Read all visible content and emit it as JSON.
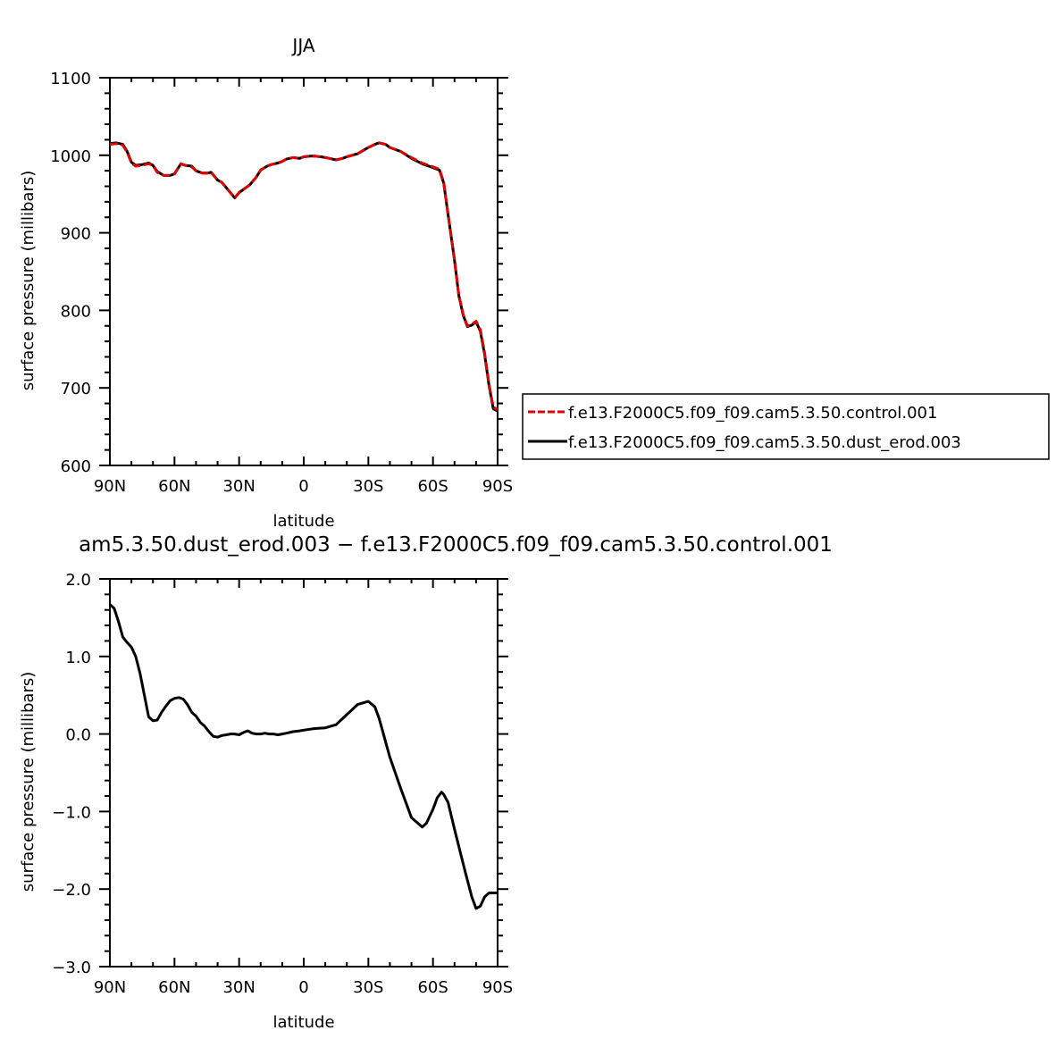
{
  "chart_data": [
    {
      "type": "line",
      "title": "JJA",
      "xlabel": "latitude",
      "ylabel": "surface pressure (millibars)",
      "xlim": [
        90,
        -90
      ],
      "ylim": [
        600,
        1100
      ],
      "x_ticks": [
        {
          "value": 90,
          "label": "90N"
        },
        {
          "value": 60,
          "label": "60N"
        },
        {
          "value": 30,
          "label": "30N"
        },
        {
          "value": 0,
          "label": "0"
        },
        {
          "value": -30,
          "label": "30S"
        },
        {
          "value": -60,
          "label": "60S"
        },
        {
          "value": -90,
          "label": "90S"
        }
      ],
      "y_ticks": [
        {
          "value": 1100,
          "label": "1100"
        },
        {
          "value": 1000,
          "label": "1000"
        },
        {
          "value": 900,
          "label": "900"
        },
        {
          "value": 800,
          "label": "800"
        },
        {
          "value": 700,
          "label": "700"
        },
        {
          "value": 600,
          "label": "600"
        }
      ],
      "legend": {
        "placement": "right",
        "entries": [
          {
            "name": "f.e13.F2000C5.f09_f09.cam5.3.50.control.001",
            "color": "#e00000",
            "dash": "dashed"
          },
          {
            "name": "f.e13.F2000C5.f09_f09.cam5.3.50.dust_erod.003",
            "color": "#000000",
            "dash": "solid"
          }
        ]
      },
      "x": [
        90,
        87,
        84,
        82,
        80,
        78,
        75,
        72,
        70,
        68,
        65,
        62,
        60,
        57,
        55,
        52,
        50,
        47,
        45,
        43,
        40,
        38,
        35,
        32,
        30,
        27,
        25,
        22,
        20,
        17,
        15,
        12,
        10,
        8,
        5,
        2,
        0,
        -3,
        -5,
        -8,
        -10,
        -12,
        -15,
        -18,
        -20,
        -25,
        -30,
        -33,
        -35,
        -38,
        -40,
        -45,
        -50,
        -55,
        -60,
        -63,
        -65,
        -67,
        -70,
        -72,
        -74,
        -76,
        -78,
        -80,
        -82,
        -84,
        -86,
        -88,
        -90
      ],
      "series": [
        {
          "name": "f.e13.F2000C5.f09_f09.cam5.3.50.control.001",
          "color": "#e00000",
          "dash": "dashed",
          "values": [
            1014,
            1015,
            1013,
            1004,
            990,
            986,
            987,
            989,
            987,
            978,
            974,
            974,
            976,
            989,
            987,
            985,
            980,
            977,
            977,
            978,
            968,
            965,
            955,
            945,
            952,
            958,
            962,
            972,
            981,
            986,
            988,
            990,
            992,
            995,
            997,
            996,
            998,
            999,
            999,
            998,
            997,
            996,
            994,
            996,
            998,
            1002,
            1010,
            1014,
            1016,
            1014,
            1010,
            1005,
            997,
            990,
            985,
            982,
            965,
            925,
            865,
            820,
            795,
            780,
            782,
            786,
            775,
            745,
            705,
            675,
            672
          ]
        },
        {
          "name": "f.e13.F2000C5.f09_f09.cam5.3.50.dust_erod.003",
          "color": "#000000",
          "dash": "solid",
          "values": [
            1015,
            1016,
            1014,
            1005,
            991,
            987,
            988,
            990,
            987,
            979,
            974,
            974,
            976,
            989,
            987,
            986,
            980,
            977,
            977,
            978,
            968,
            965,
            955,
            945,
            952,
            958,
            962,
            972,
            981,
            986,
            988,
            990,
            992,
            995,
            997,
            996,
            998,
            999,
            999,
            998,
            997,
            996,
            994,
            996,
            998,
            1002,
            1010,
            1014,
            1016,
            1014,
            1010,
            1005,
            996,
            989,
            984,
            981,
            964,
            924,
            864,
            819,
            794,
            779,
            781,
            785,
            773,
            743,
            703,
            673,
            670
          ]
        }
      ]
    },
    {
      "type": "line",
      "title": "am5.3.50.dust_erod.003 − f.e13.F2000C5.f09_f09.cam5.3.50.control.001",
      "xlabel": "latitude",
      "ylabel": "surface pressure (millibars)",
      "xlim": [
        90,
        -90
      ],
      "ylim": [
        -3.0,
        2.0
      ],
      "x_ticks": [
        {
          "value": 90,
          "label": "90N"
        },
        {
          "value": 60,
          "label": "60N"
        },
        {
          "value": 30,
          "label": "30N"
        },
        {
          "value": 0,
          "label": "0"
        },
        {
          "value": -30,
          "label": "30S"
        },
        {
          "value": -60,
          "label": "60S"
        },
        {
          "value": -90,
          "label": "90S"
        }
      ],
      "y_ticks": [
        {
          "value": 2.0,
          "label": "2.0"
        },
        {
          "value": 1.0,
          "label": "1.0"
        },
        {
          "value": 0.0,
          "label": "0.0"
        },
        {
          "value": -1.0,
          "label": "−1.0"
        },
        {
          "value": -2.0,
          "label": "−2.0"
        },
        {
          "value": -3.0,
          "label": "−3.0"
        }
      ],
      "x": [
        90,
        88,
        86,
        84,
        82,
        80,
        78,
        76,
        74,
        72,
        70,
        68,
        66,
        64,
        62,
        60,
        58,
        56,
        54,
        52,
        50,
        48,
        46,
        44,
        42,
        40,
        38,
        36,
        34,
        32,
        30,
        28,
        26,
        24,
        22,
        20,
        18,
        16,
        14,
        12,
        10,
        8,
        5,
        2,
        0,
        -5,
        -10,
        -15,
        -20,
        -25,
        -30,
        -33,
        -35,
        -38,
        -40,
        -45,
        -50,
        -55,
        -57,
        -60,
        -62,
        -64,
        -65,
        -67,
        -70,
        -72,
        -75,
        -78,
        -80,
        -82,
        -84,
        -86,
        -88,
        -90
      ],
      "series": [
        {
          "name": "",
          "color": "#000000",
          "dash": "solid",
          "values": [
            1.67,
            1.62,
            1.45,
            1.25,
            1.18,
            1.12,
            1.0,
            0.78,
            0.5,
            0.22,
            0.17,
            0.18,
            0.28,
            0.36,
            0.43,
            0.46,
            0.47,
            0.45,
            0.38,
            0.28,
            0.23,
            0.15,
            0.1,
            0.03,
            -0.03,
            -0.04,
            -0.02,
            -0.01,
            0.0,
            0.0,
            -0.01,
            0.02,
            0.04,
            0.01,
            0.0,
            0.0,
            0.01,
            0.0,
            0.0,
            -0.01,
            0.0,
            0.01,
            0.03,
            0.04,
            0.05,
            0.07,
            0.08,
            0.12,
            0.25,
            0.38,
            0.42,
            0.35,
            0.2,
            -0.1,
            -0.3,
            -0.7,
            -1.08,
            -1.2,
            -1.15,
            -0.97,
            -0.82,
            -0.75,
            -0.78,
            -0.88,
            -1.23,
            -1.45,
            -1.78,
            -2.1,
            -2.25,
            -2.22,
            -2.1,
            -2.05,
            -2.05,
            -2.05
          ]
        }
      ]
    }
  ]
}
